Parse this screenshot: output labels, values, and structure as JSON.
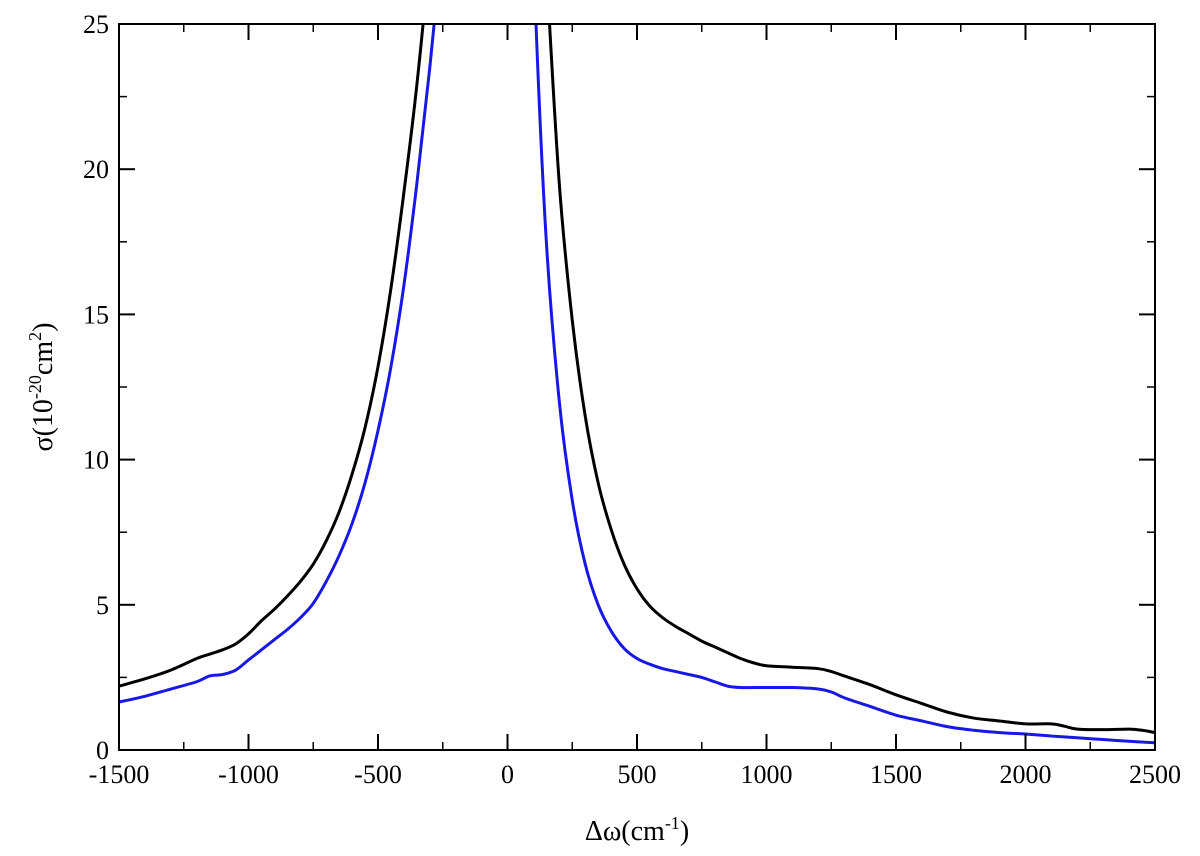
{
  "chart_data": {
    "type": "line",
    "xlabel": {
      "base": "Δω(cm",
      "sup": "-1",
      "tail": ")"
    },
    "ylabel": {
      "base": "σ(10",
      "sup1": "-20",
      "mid": "cm",
      "sup2": "2",
      "tail": ")"
    },
    "xlim": [
      -1500,
      2500
    ],
    "ylim": [
      0,
      25
    ],
    "xticks": [
      -1500,
      -1000,
      -500,
      0,
      500,
      1000,
      1500,
      2000,
      2500
    ],
    "yticks": [
      0,
      5,
      10,
      15,
      20,
      25
    ],
    "x_minor_step": 250,
    "y_minor_step": 2.5,
    "grid": false,
    "legend": "none",
    "series": [
      {
        "color": "#000000",
        "left": {
          "x": [
            -1500,
            -1400,
            -1300,
            -1200,
            -1150,
            -1100,
            -1050,
            -1000,
            -950,
            -900,
            -850,
            -800,
            -750,
            -700,
            -650,
            -600,
            -550,
            -500,
            -450,
            -400,
            -350,
            -300,
            -270
          ],
          "y": [
            2.2,
            2.45,
            2.75,
            3.15,
            3.3,
            3.45,
            3.65,
            4.0,
            4.45,
            4.85,
            5.3,
            5.8,
            6.4,
            7.2,
            8.2,
            9.5,
            11.1,
            13.2,
            15.9,
            19.2,
            22.9,
            27.5,
            31.0
          ]
        },
        "right": {
          "x": [
            130,
            150,
            200,
            250,
            300,
            350,
            400,
            450,
            500,
            550,
            600,
            650,
            700,
            750,
            800,
            850,
            900,
            950,
            1000,
            1100,
            1200,
            1250,
            1300,
            1400,
            1500,
            1600,
            1700,
            1800,
            1900,
            2000,
            2100,
            2150,
            2200,
            2300,
            2400,
            2450,
            2500
          ],
          "y": [
            31.0,
            27.0,
            19.5,
            14.8,
            11.5,
            9.2,
            7.6,
            6.4,
            5.55,
            4.95,
            4.55,
            4.25,
            4.0,
            3.75,
            3.55,
            3.35,
            3.15,
            3.0,
            2.9,
            2.85,
            2.8,
            2.7,
            2.55,
            2.25,
            1.9,
            1.6,
            1.3,
            1.1,
            1.0,
            0.9,
            0.9,
            0.82,
            0.72,
            0.7,
            0.72,
            0.68,
            0.6
          ]
        }
      },
      {
        "color": "#1818e6",
        "left": {
          "x": [
            -1500,
            -1400,
            -1300,
            -1200,
            -1150,
            -1100,
            -1050,
            -1000,
            -950,
            -900,
            -850,
            -800,
            -750,
            -700,
            -650,
            -600,
            -550,
            -500,
            -450,
            -400,
            -350,
            -300,
            -250,
            -210
          ],
          "y": [
            1.65,
            1.85,
            2.1,
            2.35,
            2.55,
            2.6,
            2.75,
            3.1,
            3.45,
            3.8,
            4.15,
            4.55,
            5.05,
            5.8,
            6.7,
            7.8,
            9.2,
            11.0,
            13.2,
            16.0,
            19.5,
            23.5,
            28.0,
            31.0
          ]
        },
        "right": {
          "x": [
            90,
            110,
            150,
            200,
            250,
            300,
            350,
            400,
            450,
            500,
            550,
            600,
            650,
            700,
            750,
            800,
            850,
            900,
            950,
            1000,
            1100,
            1200,
            1250,
            1300,
            1400,
            1500,
            1600,
            1700,
            1800,
            1900,
            2000,
            2100,
            2200,
            2300,
            2400,
            2500
          ],
          "y": [
            31.0,
            25.0,
            17.5,
            12.0,
            8.6,
            6.4,
            5.0,
            4.1,
            3.5,
            3.15,
            2.95,
            2.8,
            2.7,
            2.6,
            2.5,
            2.35,
            2.2,
            2.15,
            2.15,
            2.15,
            2.15,
            2.1,
            2.0,
            1.8,
            1.5,
            1.2,
            1.0,
            0.8,
            0.68,
            0.6,
            0.55,
            0.48,
            0.42,
            0.36,
            0.3,
            0.25
          ]
        }
      }
    ]
  }
}
